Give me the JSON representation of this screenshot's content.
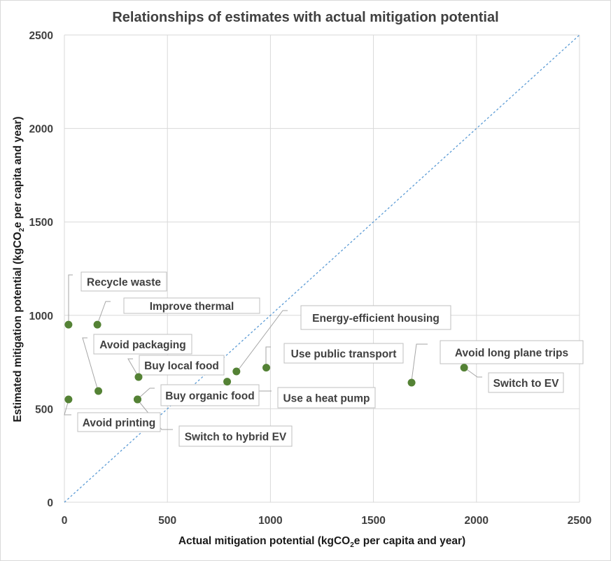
{
  "chart_data": {
    "type": "scatter",
    "title": "Relationships of estimates with actual mitigation potential",
    "xlabel": {
      "pre": "Actual mitigation potential (kgCO",
      "sub": "2",
      "post": "e per capita and year)"
    },
    "ylabel": {
      "pre": "Estimated mitigation potential (kgCO",
      "sub": "2",
      "post": "e per capita and year)"
    },
    "xlim": [
      0,
      2500
    ],
    "ylim": [
      0,
      2500
    ],
    "xticks": [
      "0",
      "500",
      "1000",
      "1500",
      "2000",
      "2500"
    ],
    "yticks": [
      "0",
      "500",
      "1000",
      "1500",
      "2000",
      "2500"
    ],
    "grid": true,
    "reference_line": "y = x",
    "colors": {
      "points": "#548235",
      "reference_line": "#5b9bd5",
      "grid": "#d9d9d9",
      "text": "#404040"
    },
    "points": [
      {
        "label": "Recycle waste",
        "x": 20,
        "y": 950
      },
      {
        "label": "Improve thermal",
        "x": 160,
        "y": 950
      },
      {
        "label": "Energy-efficient housing",
        "x": 835,
        "y": 700
      },
      {
        "label": "Avoid packaging",
        "x": 165,
        "y": 595
      },
      {
        "label": "Buy local food",
        "x": 360,
        "y": 670
      },
      {
        "label": "Use public transport",
        "x": 980,
        "y": 720
      },
      {
        "label": "Avoid long plane trips",
        "x": 1685,
        "y": 640
      },
      {
        "label": "Switch to EV",
        "x": 1940,
        "y": 720
      },
      {
        "label": "Buy organic food",
        "x": 355,
        "y": 550
      },
      {
        "label": "Use a heat pump",
        "x": 790,
        "y": 645
      },
      {
        "label": "Avoid printing",
        "x": 20,
        "y": 550
      },
      {
        "label": "Switch to hybrid EV",
        "x": 355,
        "y": 550
      }
    ]
  }
}
